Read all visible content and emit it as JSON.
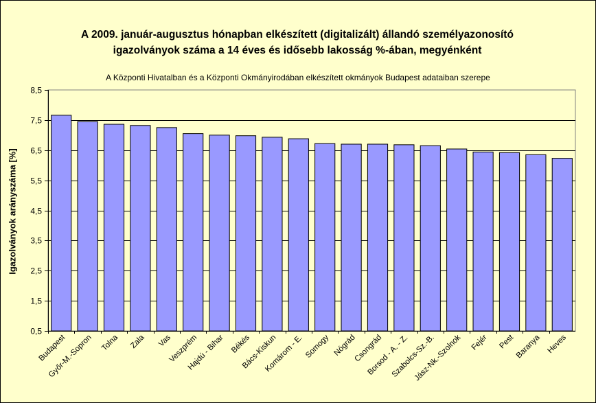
{
  "chart_data": {
    "type": "bar",
    "title": "A 2009. január-augusztus hónapban elkészített (digitalizált) állandó személyazonosító",
    "title_line2": "igazolványok száma a 14 éves és idősebb lakosság %-ában, megyénként",
    "subtitle": "A  Központi Hivatalban és a Központi Okmányirodában elkészített  okmányok Budapest adataiban szerepe",
    "ylabel": "Igazolványok arányszáma [%]",
    "xlabel": "",
    "ylim": [
      0.5,
      8.5
    ],
    "yticks": [
      "0,5",
      "1,5",
      "2,5",
      "3,5",
      "4,5",
      "5,5",
      "6,5",
      "7,5",
      "8,5"
    ],
    "grid": true,
    "bar_color": "#9999ff",
    "plot_background": "#ffffcc",
    "categories": [
      "Budapest",
      "Győr-M.-Sopron",
      "Tolna",
      "Zala",
      "Vas",
      "Veszprém",
      "Hajdú - Bihar",
      "Békés",
      "Bács-Kiskun",
      "Komárom - E.",
      "Somogy",
      "Nógrád",
      "Csongrád",
      "Borsod - A. - Z.",
      "Szabolcs-Sz.-B.",
      "Jász-Nk.-Szolnok",
      "Fejér",
      "Pest",
      "Baranya",
      "Heves"
    ],
    "values": [
      7.66,
      7.45,
      7.36,
      7.32,
      7.25,
      7.05,
      7.0,
      6.98,
      6.93,
      6.88,
      6.72,
      6.7,
      6.7,
      6.68,
      6.65,
      6.54,
      6.44,
      6.42,
      6.35,
      6.23
    ]
  }
}
